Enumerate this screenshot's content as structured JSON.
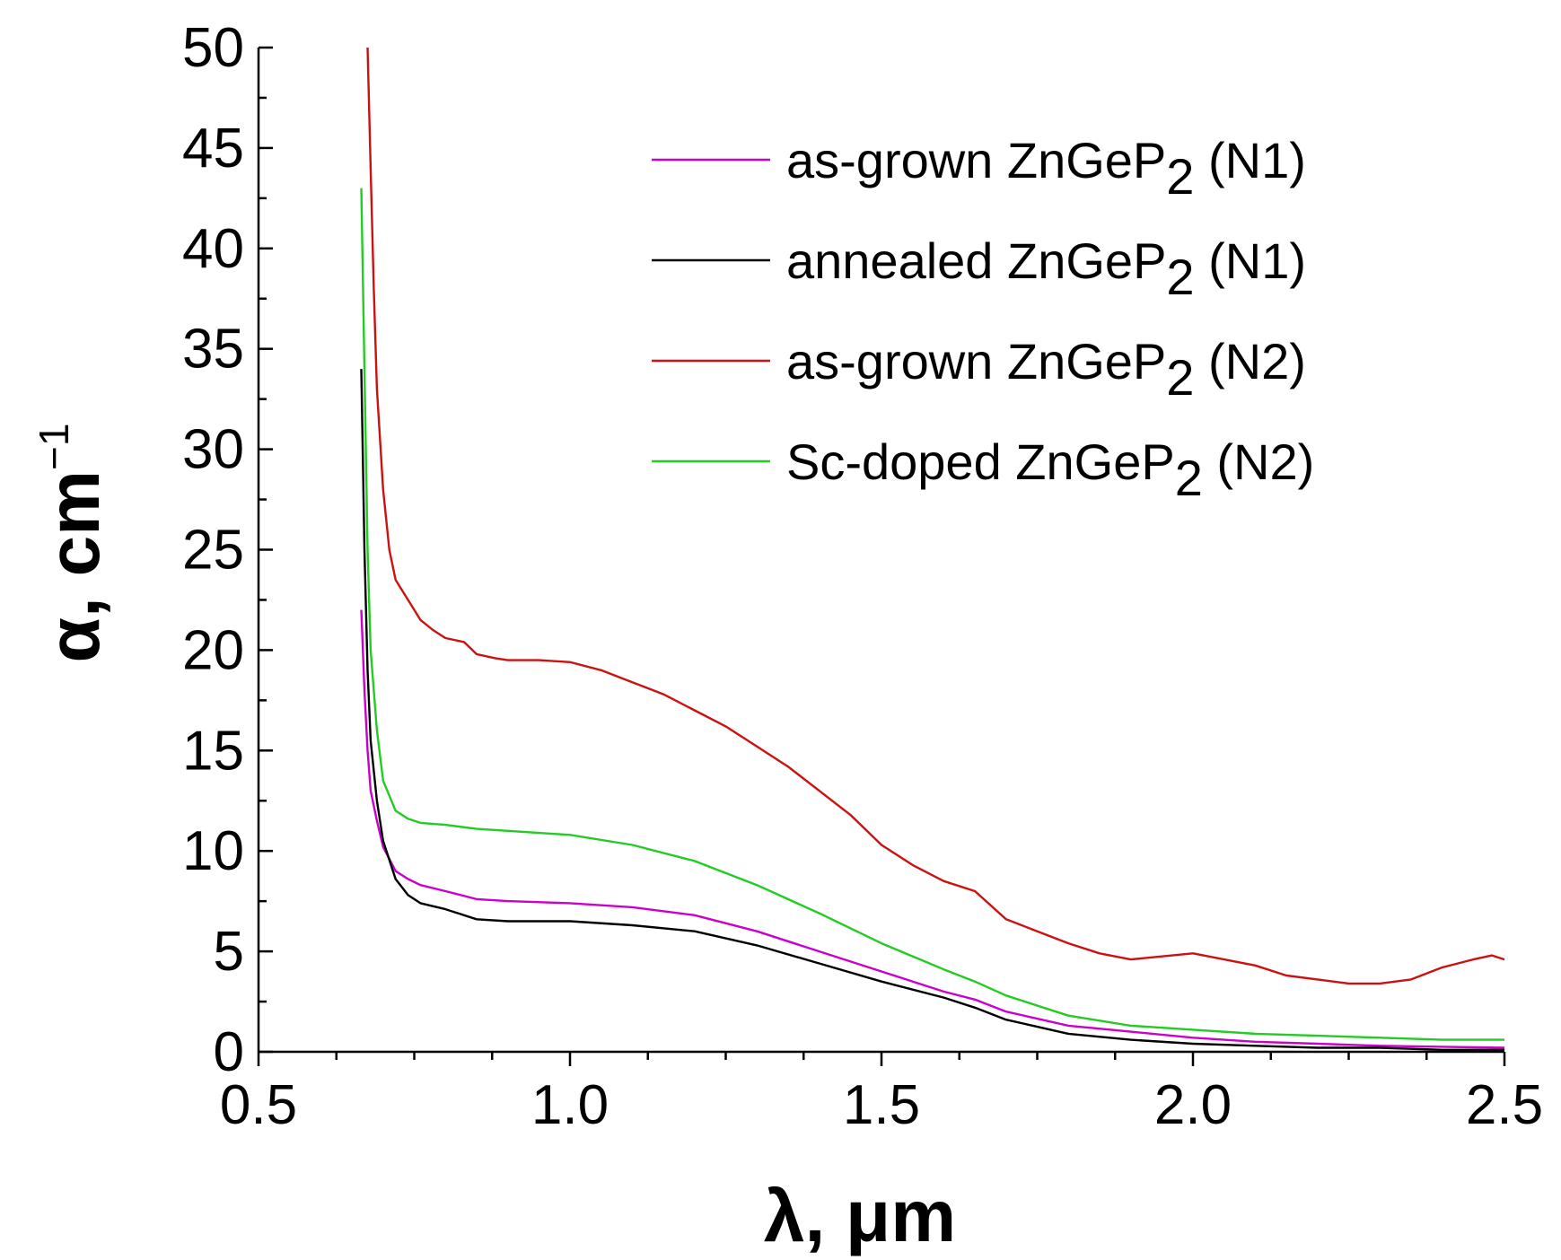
{
  "chart_data": {
    "type": "line",
    "title": "",
    "xlabel": "λ, μm",
    "ylabel_main": "α, cm",
    "ylabel_sup": "−1",
    "xlim": [
      0.5,
      2.5
    ],
    "ylim": [
      0,
      50
    ],
    "x_ticks": [
      0.5,
      1.0,
      1.5,
      2.0,
      2.5
    ],
    "x_tick_labels": [
      "0.5",
      "1.0",
      "1.5",
      "2.0",
      "2.5"
    ],
    "y_ticks": [
      0,
      5,
      10,
      15,
      20,
      25,
      30,
      35,
      40,
      45,
      50
    ],
    "y_tick_labels": [
      "0",
      "5",
      "10",
      "15",
      "20",
      "25",
      "30",
      "35",
      "40",
      "45",
      "50"
    ],
    "grid": false,
    "legend_position": "top-right",
    "series": [
      {
        "name": "as-grown ZnGeP2 (N1)",
        "legend_prefix": "as-grown ZnGeP",
        "legend_sub": "2",
        "legend_suffix": " (N1)",
        "color": "#cc00cc",
        "x": [
          0.665,
          0.67,
          0.675,
          0.68,
          0.69,
          0.7,
          0.72,
          0.74,
          0.76,
          0.8,
          0.85,
          0.9,
          1.0,
          1.1,
          1.2,
          1.3,
          1.4,
          1.5,
          1.6,
          1.65,
          1.7,
          1.8,
          1.9,
          2.0,
          2.1,
          2.2,
          2.3,
          2.4,
          2.5
        ],
        "y": [
          22,
          18,
          15,
          13,
          11.5,
          10.2,
          9.0,
          8.6,
          8.3,
          8.0,
          7.6,
          7.5,
          7.4,
          7.2,
          6.8,
          6.0,
          5.0,
          4.0,
          3.0,
          2.6,
          2.0,
          1.3,
          1.0,
          0.7,
          0.5,
          0.4,
          0.3,
          0.25,
          0.2
        ]
      },
      {
        "name": "annealed ZnGeP2 (N1)",
        "legend_prefix": "annealed ZnGeP",
        "legend_sub": "2",
        "legend_suffix": " (N1)",
        "color": "#000000",
        "x": [
          0.665,
          0.67,
          0.675,
          0.68,
          0.69,
          0.7,
          0.72,
          0.74,
          0.76,
          0.8,
          0.85,
          0.9,
          1.0,
          1.1,
          1.2,
          1.3,
          1.4,
          1.5,
          1.6,
          1.65,
          1.7,
          1.8,
          1.9,
          2.0,
          2.1,
          2.2,
          2.3,
          2.4,
          2.5
        ],
        "y": [
          34,
          25,
          19,
          15.5,
          12.5,
          10.5,
          8.6,
          7.8,
          7.4,
          7.1,
          6.6,
          6.5,
          6.5,
          6.3,
          6.0,
          5.3,
          4.4,
          3.5,
          2.7,
          2.2,
          1.6,
          0.9,
          0.6,
          0.4,
          0.3,
          0.2,
          0.2,
          0.1,
          0.1
        ]
      },
      {
        "name": "as-grown ZnGeP2 (N2)",
        "legend_prefix": "as-grown ZnGeP",
        "legend_sub": "2",
        "legend_suffix": " (N2)",
        "color": "#cc1111",
        "x": [
          0.675,
          0.68,
          0.685,
          0.69,
          0.7,
          0.71,
          0.72,
          0.74,
          0.76,
          0.78,
          0.8,
          0.83,
          0.85,
          0.88,
          0.9,
          0.95,
          1.0,
          1.05,
          1.1,
          1.15,
          1.2,
          1.25,
          1.3,
          1.35,
          1.4,
          1.45,
          1.5,
          1.55,
          1.6,
          1.65,
          1.7,
          1.75,
          1.8,
          1.85,
          1.9,
          2.0,
          2.05,
          2.1,
          2.15,
          2.2,
          2.25,
          2.3,
          2.35,
          2.4,
          2.45,
          2.48,
          2.5
        ],
        "y": [
          50,
          44,
          38,
          33,
          28,
          25,
          23.5,
          22.5,
          21.5,
          21.0,
          20.6,
          20.4,
          19.8,
          19.6,
          19.5,
          19.5,
          19.4,
          19.0,
          18.4,
          17.8,
          17.0,
          16.2,
          15.2,
          14.2,
          13.0,
          11.8,
          10.3,
          9.3,
          8.5,
          8.0,
          6.6,
          6.0,
          5.4,
          4.9,
          4.6,
          4.9,
          4.6,
          4.3,
          3.8,
          3.6,
          3.4,
          3.4,
          3.6,
          4.2,
          4.6,
          4.8,
          4.6
        ]
      },
      {
        "name": "Sc-doped ZnGeP2 (N2)",
        "legend_prefix": "Sc-doped ZnGeP",
        "legend_sub": "2",
        "legend_suffix": " (N2)",
        "color": "#22cc22",
        "x": [
          0.665,
          0.67,
          0.675,
          0.68,
          0.69,
          0.7,
          0.72,
          0.74,
          0.76,
          0.8,
          0.85,
          0.9,
          1.0,
          1.1,
          1.2,
          1.3,
          1.4,
          1.5,
          1.6,
          1.65,
          1.7,
          1.8,
          1.9,
          2.0,
          2.1,
          2.2,
          2.3,
          2.4,
          2.5
        ],
        "y": [
          43,
          34,
          25,
          20,
          16,
          13.5,
          12.0,
          11.6,
          11.4,
          11.3,
          11.1,
          11.0,
          10.8,
          10.3,
          9.5,
          8.3,
          6.9,
          5.4,
          4.1,
          3.5,
          2.8,
          1.8,
          1.3,
          1.1,
          0.9,
          0.8,
          0.7,
          0.6,
          0.6
        ]
      }
    ]
  }
}
